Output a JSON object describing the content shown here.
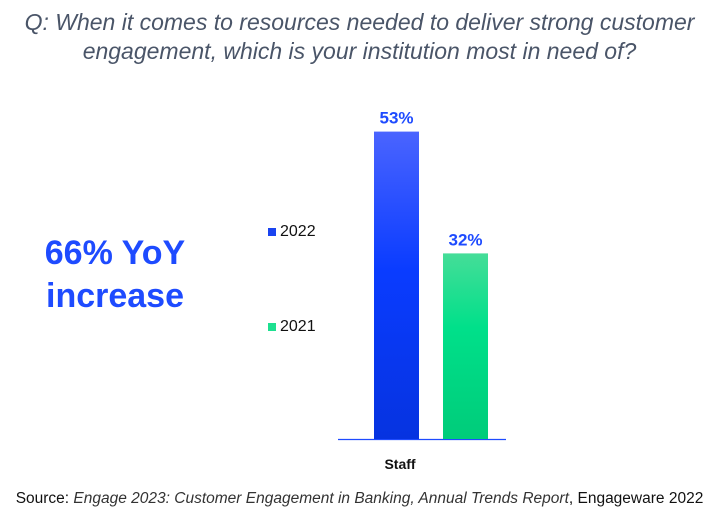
{
  "title": "Q: When it comes to resources needed to deliver strong customer engagement, which is your institution most in need of?",
  "callout": {
    "line1": "66% YoY",
    "line2": "increase"
  },
  "chart_data": {
    "type": "bar",
    "categories": [
      "Staff"
    ],
    "series": [
      {
        "name": "2022",
        "values": [
          53
        ],
        "labels": [
          "53%"
        ],
        "color": "#0a3cff"
      },
      {
        "name": "2021",
        "values": [
          32
        ],
        "labels": [
          "32%"
        ],
        "color": "#00d084"
      }
    ],
    "ylim": [
      0,
      53
    ],
    "grid": false,
    "legend_position": "left"
  },
  "source": {
    "prefix": "Source: ",
    "title": "Engage 2023: Customer Engagement in Banking, Annual Trends Report",
    "suffix": ", Engageware 2022"
  }
}
